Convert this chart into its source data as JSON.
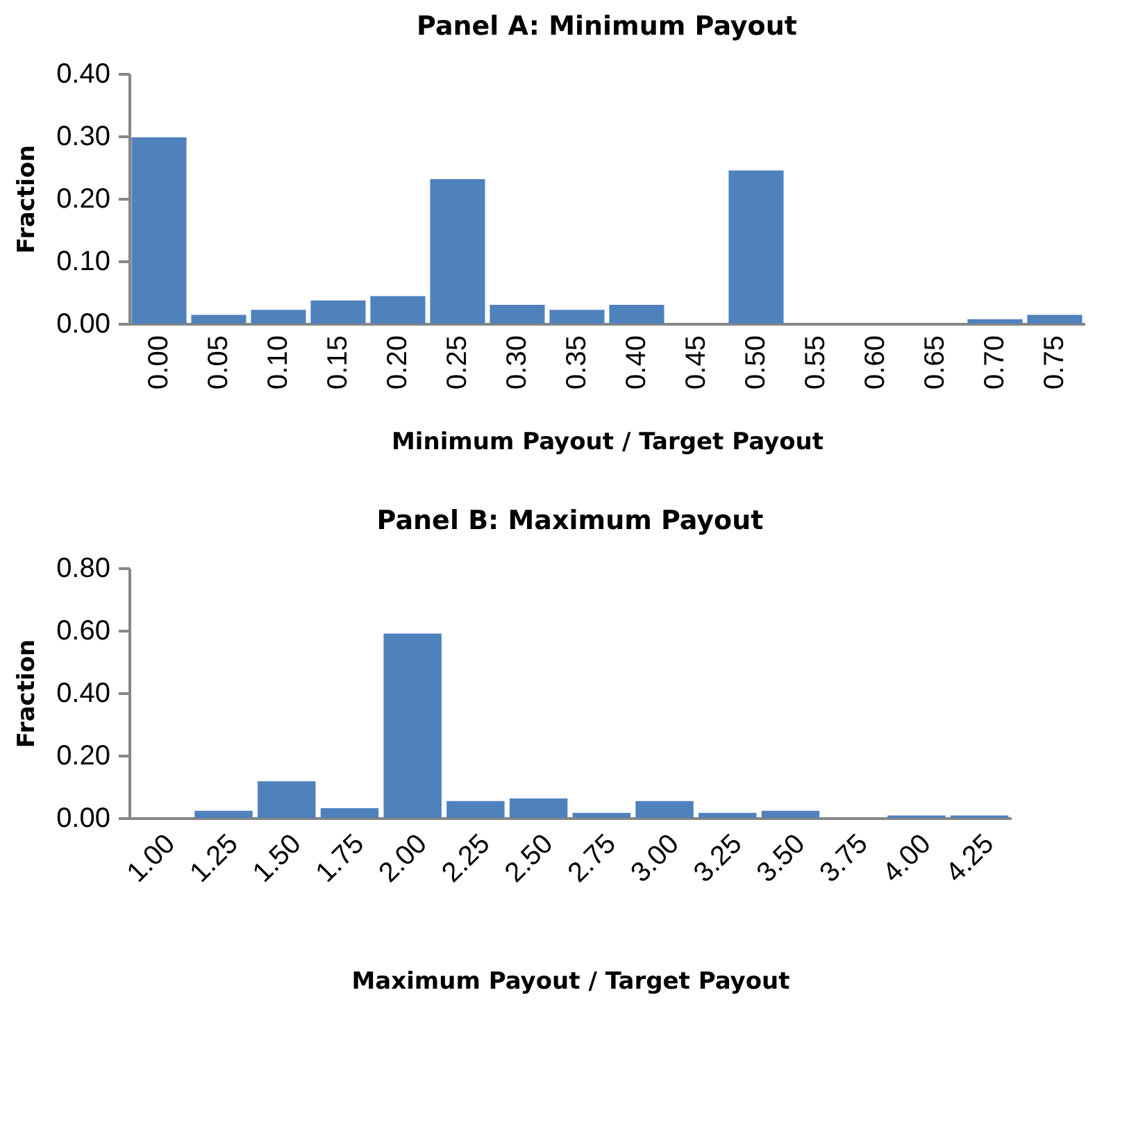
{
  "chart_data": [
    {
      "type": "bar",
      "title": "Panel A: Minimum Payout",
      "xlabel": "Minimum Payout / Target Payout",
      "ylabel": "Fraction",
      "categories": [
        "0.00",
        "0.05",
        "0.10",
        "0.15",
        "0.20",
        "0.25",
        "0.30",
        "0.35",
        "0.40",
        "0.45",
        "0.50",
        "0.55",
        "0.60",
        "0.65",
        "0.70",
        "0.75"
      ],
      "values": [
        0.298,
        0.014,
        0.022,
        0.037,
        0.044,
        0.231,
        0.03,
        0.022,
        0.03,
        0,
        0.245,
        0,
        0,
        0,
        0.007,
        0.014
      ],
      "color": "#4f81bd",
      "ylim": [
        0,
        0.4
      ],
      "yticks": [
        {
          "value": 0,
          "label": "0.00"
        },
        {
          "value": 0.1,
          "label": "0.10"
        },
        {
          "value": 0.2,
          "label": "0.20"
        },
        {
          "value": 0.3,
          "label": "0.30"
        },
        {
          "value": 0.4,
          "label": "0.40"
        }
      ],
      "grid": false
    },
    {
      "type": "bar",
      "title": "Panel B: Maximum Payout",
      "xlabel": "Maximum Payout / Target Payout",
      "ylabel": "Fraction",
      "categories": [
        "1.00",
        "1.25",
        "1.50",
        "1.75",
        "2.00",
        "2.25",
        "2.50",
        "2.75",
        "3.00",
        "3.25",
        "3.50",
        "3.75",
        "4.00",
        "4.25"
      ],
      "values": [
        0,
        0.023,
        0.117,
        0.031,
        0.59,
        0.054,
        0.062,
        0.016,
        0.054,
        0.016,
        0.023,
        0,
        0.008,
        0.008
      ],
      "color": "#4f81bd",
      "ylim": [
        0,
        0.8
      ],
      "yticks": [
        {
          "value": 0,
          "label": "0.00"
        },
        {
          "value": 0.2,
          "label": "0.20"
        },
        {
          "value": 0.4,
          "label": "0.40"
        },
        {
          "value": 0.6,
          "label": "0.60"
        },
        {
          "value": 0.8,
          "label": "0.80"
        }
      ],
      "grid": false
    }
  ]
}
